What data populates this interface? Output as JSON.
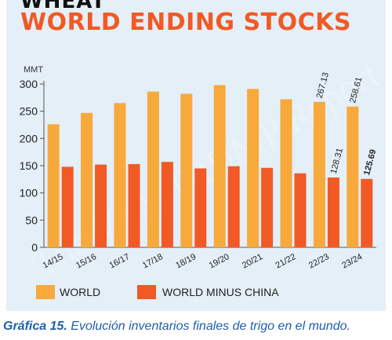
{
  "header": {
    "title_top": "WHEAT",
    "title_main": "WORLD ENDING STOCKS"
  },
  "watermark": "The VAN TRUMP Report",
  "caption": {
    "label": "Gráfica 15.",
    "text": "Evolución inventarios finales de trigo en el mundo."
  },
  "colors": {
    "world": "#f7a93b",
    "world_minus_china": "#f15a24",
    "title": "#f15a24",
    "background": "#e4eff8",
    "caption": "#1f5fa8"
  },
  "chart_data": {
    "type": "bar",
    "ylabel": "MMT",
    "ylim": [
      0,
      300
    ],
    "yticks": [
      0,
      50,
      100,
      150,
      200,
      250,
      300
    ],
    "grid": false,
    "legend_position": "bottom",
    "categories": [
      "14/15",
      "15/16",
      "16/17",
      "17/18",
      "18/19",
      "19/20",
      "20/21",
      "21/22",
      "22/23",
      "23/24"
    ],
    "series": [
      {
        "name": "WORLD",
        "values": [
          226,
          247,
          265,
          286,
          282,
          298,
          291,
          272,
          267.13,
          258.61
        ]
      },
      {
        "name": "WORLD MINUS CHINA",
        "values": [
          148,
          152,
          153,
          157,
          145,
          149,
          146,
          136,
          128.31,
          125.69
        ]
      }
    ],
    "data_labels": [
      {
        "category": "22/23",
        "series": "WORLD",
        "text": "267.13"
      },
      {
        "category": "23/24",
        "series": "WORLD",
        "text": "258.61"
      },
      {
        "category": "22/23",
        "series": "WORLD MINUS CHINA",
        "text": "128.31"
      },
      {
        "category": "23/24",
        "series": "WORLD MINUS CHINA",
        "text": "125.69"
      }
    ]
  }
}
